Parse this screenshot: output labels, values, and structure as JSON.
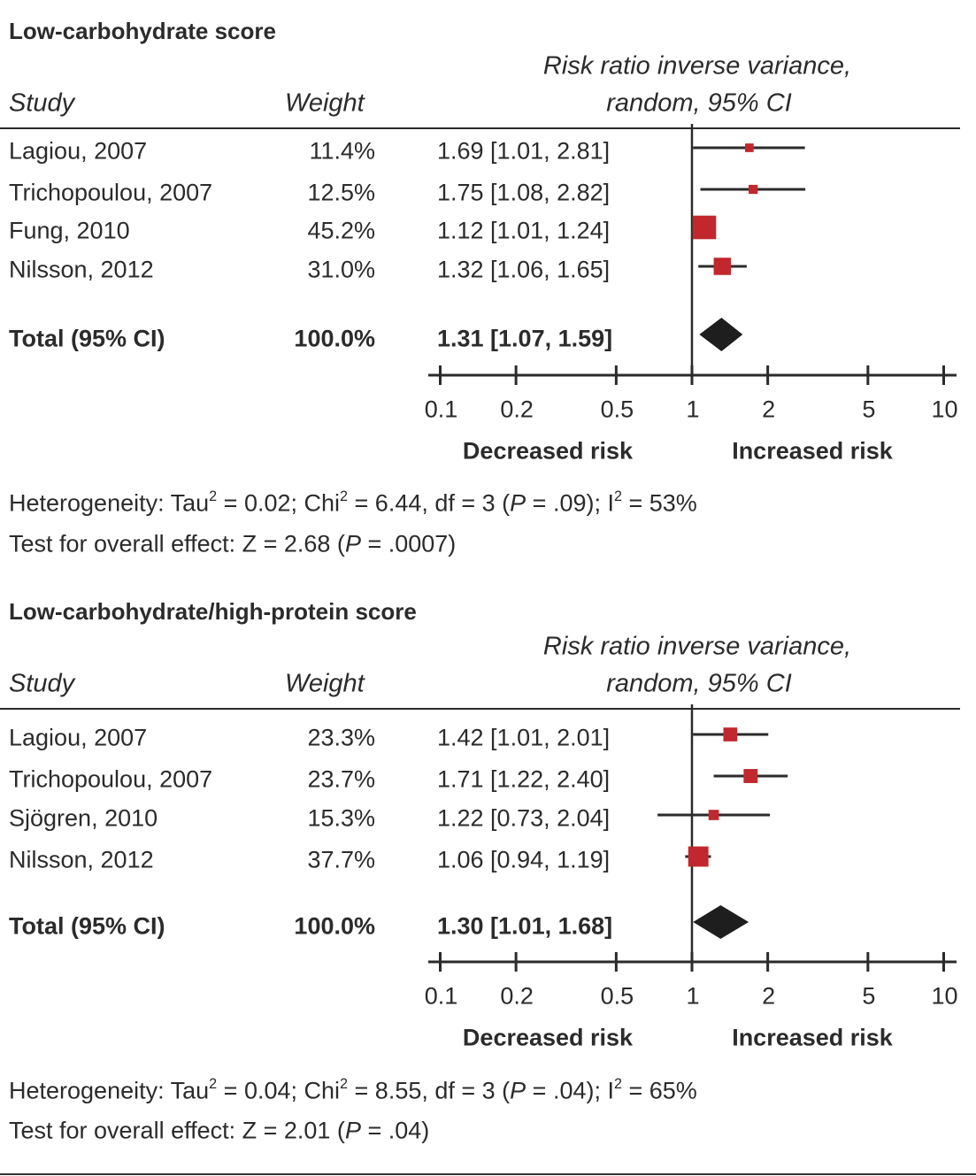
{
  "chart_data": [
    {
      "type": "forest",
      "title": "Low-carbohydrate score",
      "header": {
        "study": "Study",
        "weight": "Weight",
        "effect_line1": "Risk ratio inverse variance,",
        "effect_line2": "random, 95% CI"
      },
      "x_scale": "log",
      "xlim": [
        0.1,
        10
      ],
      "ticks": [
        "0.1",
        "0.2",
        "0.5",
        "1",
        "2",
        "5",
        "10"
      ],
      "tick_values": [
        0.1,
        0.2,
        0.5,
        1,
        2,
        5,
        10
      ],
      "left_label": "Decreased risk",
      "right_label": "Increased risk",
      "marker_color": "#c1272d",
      "studies": [
        {
          "study": "Lagiou, 2007",
          "weight_label": "11.4%",
          "weight": 11.4,
          "ci_label": "1.69 [1.01, 2.81]",
          "rr": 1.69,
          "lo": 1.01,
          "hi": 2.81
        },
        {
          "study": "Trichopoulou, 2007",
          "weight_label": "12.5%",
          "weight": 12.5,
          "ci_label": "1.75 [1.08, 2.82]",
          "rr": 1.75,
          "lo": 1.08,
          "hi": 2.82
        },
        {
          "study": "Fung, 2010",
          "weight_label": "45.2%",
          "weight": 45.2,
          "ci_label": "1.12 [1.01, 1.24]",
          "rr": 1.12,
          "lo": 1.01,
          "hi": 1.24
        },
        {
          "study": "Nilsson, 2012",
          "weight_label": "31.0%",
          "weight": 31.0,
          "ci_label": "1.32 [1.06, 1.65]",
          "rr": 1.32,
          "lo": 1.06,
          "hi": 1.65
        }
      ],
      "total": {
        "label": "Total (95% CI)",
        "weight_label": "100.0%",
        "ci_label": "1.31 [1.07, 1.59]",
        "rr": 1.31,
        "lo": 1.07,
        "hi": 1.59
      },
      "heterogeneity": [
        {
          "text": "Heterogeneity: Tau",
          "style": ""
        },
        {
          "text": "2",
          "style": "sup"
        },
        {
          "text": " = 0.02; Chi",
          "style": ""
        },
        {
          "text": "2",
          "style": "sup"
        },
        {
          "text": " = 6.44, df = 3 (",
          "style": ""
        },
        {
          "text": "P",
          "style": "italic"
        },
        {
          "text": " = .09); I",
          "style": ""
        },
        {
          "text": "2",
          "style": "sup"
        },
        {
          "text": " = 53%",
          "style": ""
        }
      ],
      "overall_effect": [
        {
          "text": "Test for overall effect: Z = 2.68 (",
          "style": ""
        },
        {
          "text": "P",
          "style": "italic"
        },
        {
          "text": " = .0007)",
          "style": ""
        }
      ]
    },
    {
      "type": "forest",
      "title": "Low-carbohydrate/high-protein score",
      "header": {
        "study": "Study",
        "weight": "Weight",
        "effect_line1": "Risk ratio inverse variance,",
        "effect_line2": "random, 95% CI"
      },
      "x_scale": "log",
      "xlim": [
        0.1,
        10
      ],
      "ticks": [
        "0.1",
        "0.2",
        "0.5",
        "1",
        "2",
        "5",
        "10"
      ],
      "tick_values": [
        0.1,
        0.2,
        0.5,
        1,
        2,
        5,
        10
      ],
      "left_label": "Decreased risk",
      "right_label": "Increased risk",
      "marker_color": "#c1272d",
      "studies": [
        {
          "study": "Lagiou, 2007",
          "weight_label": "23.3%",
          "weight": 23.3,
          "ci_label": "1.42 [1.01, 2.01]",
          "rr": 1.42,
          "lo": 1.01,
          "hi": 2.01
        },
        {
          "study": "Trichopoulou, 2007",
          "weight_label": "23.7%",
          "weight": 23.7,
          "ci_label": "1.71 [1.22, 2.40]",
          "rr": 1.71,
          "lo": 1.22,
          "hi": 2.4
        },
        {
          "study": "Sjögren, 2010",
          "weight_label": "15.3%",
          "weight": 15.3,
          "ci_label": "1.22 [0.73, 2.04]",
          "rr": 1.22,
          "lo": 0.73,
          "hi": 2.04
        },
        {
          "study": "Nilsson, 2012",
          "weight_label": "37.7%",
          "weight": 37.7,
          "ci_label": "1.06 [0.94, 1.19]",
          "rr": 1.06,
          "lo": 0.94,
          "hi": 1.19
        }
      ],
      "total": {
        "label": "Total (95% CI)",
        "weight_label": "100.0%",
        "ci_label": "1.30 [1.01, 1.68]",
        "rr": 1.3,
        "lo": 1.01,
        "hi": 1.68
      },
      "heterogeneity": [
        {
          "text": "Heterogeneity: Tau",
          "style": ""
        },
        {
          "text": "2",
          "style": "sup"
        },
        {
          "text": " = 0.04; Chi",
          "style": ""
        },
        {
          "text": "2",
          "style": "sup"
        },
        {
          "text": " = 8.55, df = 3 (",
          "style": ""
        },
        {
          "text": "P",
          "style": "italic"
        },
        {
          "text": " = .04); I",
          "style": ""
        },
        {
          "text": "2",
          "style": "sup"
        },
        {
          "text": " = 65%",
          "style": ""
        }
      ],
      "overall_effect": [
        {
          "text": "Test for overall effect: Z = 2.01 (",
          "style": ""
        },
        {
          "text": "P",
          "style": "italic"
        },
        {
          "text": " = .04)",
          "style": ""
        }
      ]
    }
  ]
}
